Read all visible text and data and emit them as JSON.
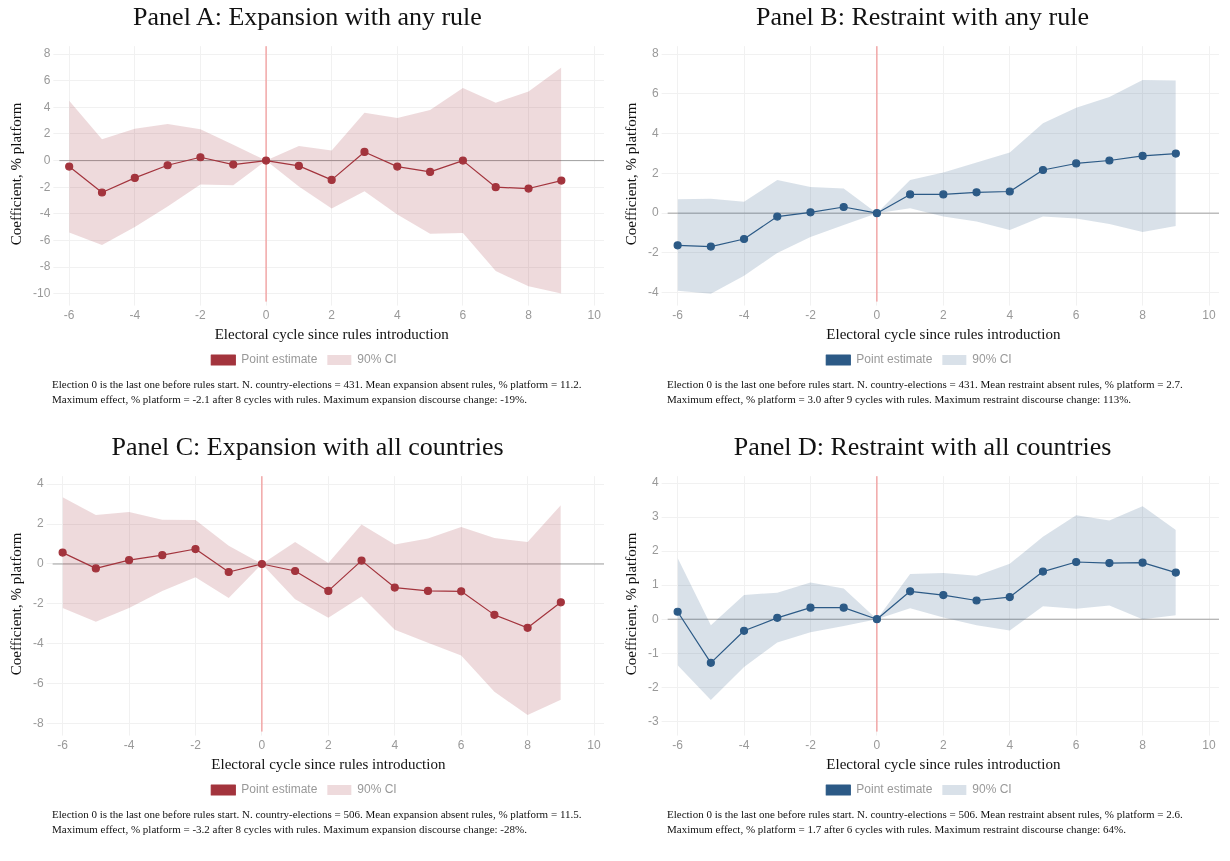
{
  "chart_data": [
    {
      "type": "line",
      "title": "Panel A: Expansion with any rule",
      "xlabel": "Electoral cycle since rules introduction",
      "ylabel": "Coefficient, % platform",
      "x": [
        -6,
        -5,
        -4,
        -3,
        -2,
        -1,
        0,
        1,
        2,
        3,
        4,
        5,
        6,
        7,
        8,
        9
      ],
      "series": [
        {
          "name": "Point estimate",
          "color": "#a3343d",
          "values": [
            -0.45,
            -2.4,
            -1.3,
            -0.35,
            0.25,
            -0.3,
            0,
            -0.4,
            -1.45,
            0.65,
            -0.45,
            -0.85,
            0,
            -2.0,
            -2.1,
            -1.5
          ],
          "lower": [
            -5.4,
            -6.35,
            -5.0,
            -3.45,
            -1.8,
            -1.85,
            0,
            -1.95,
            -3.6,
            -2.3,
            -4.05,
            -5.5,
            -5.45,
            -8.3,
            -9.45,
            -10.0
          ],
          "upper": [
            4.5,
            1.6,
            2.4,
            2.75,
            2.35,
            1.2,
            0,
            1.1,
            0.75,
            3.6,
            3.2,
            3.8,
            5.45,
            4.35,
            5.2,
            7.0
          ]
        }
      ],
      "xlim": [
        -6.3,
        10.3
      ],
      "xticks": [
        -6,
        -4,
        -2,
        0,
        2,
        4,
        6,
        8,
        10
      ],
      "ylim": [
        -10.6,
        8.6
      ],
      "yticks": [
        -10,
        -8,
        -6,
        -4,
        -2,
        0,
        2,
        4,
        6,
        8
      ],
      "ref_lines": [
        {
          "axis": "x",
          "value": 0,
          "color": "#f08080"
        },
        {
          "axis": "y",
          "value": 0,
          "color": "#a0a0a0"
        }
      ],
      "grid": true,
      "legend": "bottom",
      "marker": "circle",
      "line_style": "solid",
      "annotations": [
        "90% CI",
        "Election 0 is the last one before rules start. N. country-elections = 431. Mean expansion absent rules, % platform = 11.2.",
        "Maximum effect, % platform = -2.1 after 8 cycles with rules. Maximum expansion discourse change: -19%."
      ]
    },
    {
      "type": "line",
      "title": "Panel B: Restraint with any rule",
      "xlabel": "Electoral cycle since rules introduction",
      "ylabel": "Coefficient, % platform",
      "x": [
        -6,
        -5,
        -4,
        -3,
        -2,
        -1,
        0,
        1,
        2,
        3,
        4,
        5,
        6,
        7,
        8,
        9
      ],
      "series": [
        {
          "name": "Point estimate",
          "color": "#2c5a86",
          "values": [
            -1.62,
            -1.68,
            -1.3,
            -0.17,
            0.04,
            0.31,
            0,
            0.94,
            0.94,
            1.05,
            1.09,
            2.17,
            2.5,
            2.65,
            2.88,
            3.0
          ],
          "lower": [
            -3.9,
            -4.05,
            -3.15,
            -2.0,
            -1.2,
            -0.6,
            0,
            0.25,
            -0.17,
            -0.42,
            -0.85,
            -0.17,
            -0.27,
            -0.55,
            -0.95,
            -0.65
          ],
          "upper": [
            0.7,
            0.73,
            0.57,
            1.67,
            1.32,
            1.24,
            0,
            1.67,
            2.05,
            2.55,
            3.05,
            4.52,
            5.3,
            5.85,
            6.7,
            6.67
          ]
        }
      ],
      "xlim": [
        -6.3,
        10.3
      ],
      "xticks": [
        -6,
        -4,
        -2,
        0,
        2,
        4,
        6,
        8,
        10
      ],
      "ylim": [
        -4.45,
        8.4
      ],
      "yticks": [
        -4,
        -2,
        0,
        2,
        4,
        6,
        8
      ],
      "ref_lines": [
        {
          "axis": "x",
          "value": 0,
          "color": "#f08080"
        },
        {
          "axis": "y",
          "value": 0,
          "color": "#a0a0a0"
        }
      ],
      "grid": true,
      "legend": "bottom",
      "marker": "circle",
      "line_style": "solid",
      "annotations": [
        "90% CI",
        "Election 0 is the last one before rules start. N. country-elections = 431. Mean restraint absent rules, % platform = 2.7.",
        "Maximum effect, % platform = 3.0 after 9 cycles with rules. Maximum restraint discourse change: 113%."
      ]
    },
    {
      "type": "line",
      "title": "Panel C: Expansion with all countries",
      "xlabel": "Electoral cycle since rules introduction",
      "ylabel": "Coefficient, % platform",
      "x": [
        -6,
        -5,
        -4,
        -3,
        -2,
        -1,
        0,
        1,
        2,
        3,
        4,
        5,
        6,
        7,
        8,
        9
      ],
      "series": [
        {
          "name": "Point estimate",
          "color": "#a3343d",
          "values": [
            0.57,
            -0.22,
            0.19,
            0.44,
            0.75,
            -0.4,
            0,
            -0.35,
            -1.35,
            0.17,
            -1.18,
            -1.35,
            -1.37,
            -2.55,
            -3.2,
            -1.92
          ],
          "lower": [
            -2.2,
            -2.9,
            -2.2,
            -1.35,
            -0.67,
            -1.7,
            0,
            -1.77,
            -2.7,
            -1.63,
            -3.3,
            -3.95,
            -4.58,
            -6.4,
            -7.57,
            -6.8
          ],
          "upper": [
            3.35,
            2.45,
            2.6,
            2.22,
            2.2,
            0.92,
            0,
            1.1,
            0.05,
            1.98,
            0.98,
            1.28,
            1.85,
            1.3,
            1.1,
            2.95
          ]
        }
      ],
      "xlim": [
        -6.3,
        10.3
      ],
      "xticks": [
        -6,
        -4,
        -2,
        0,
        2,
        4,
        6,
        8,
        10
      ],
      "ylim": [
        -8.4,
        4.4
      ],
      "yticks": [
        -8,
        -6,
        -4,
        -2,
        0,
        2,
        4
      ],
      "ref_lines": [
        {
          "axis": "x",
          "value": 0,
          "color": "#f08080"
        },
        {
          "axis": "y",
          "value": 0,
          "color": "#a0a0a0"
        }
      ],
      "grid": true,
      "legend": "bottom",
      "marker": "circle",
      "line_style": "solid",
      "annotations": [
        "90% CI",
        "Election 0 is the last one before rules start. N. country-elections = 506. Mean expansion absent rules, % platform = 11.5.",
        "Maximum effect, % platform = -3.2 after 8 cycles with rules. Maximum expansion discourse change: -28%."
      ]
    },
    {
      "type": "line",
      "title": "Panel D: Restraint with all countries",
      "xlabel": "Electoral cycle since rules introduction",
      "ylabel": "Coefficient, % platform",
      "x": [
        -6,
        -5,
        -4,
        -3,
        -2,
        -1,
        0,
        1,
        2,
        3,
        4,
        5,
        6,
        7,
        8,
        9
      ],
      "series": [
        {
          "name": "Point estimate",
          "color": "#2c5a86",
          "values": [
            0.22,
            -1.28,
            -0.34,
            0.04,
            0.34,
            0.34,
            0,
            0.82,
            0.71,
            0.55,
            0.65,
            1.4,
            1.68,
            1.65,
            1.66,
            1.37
          ],
          "lower": [
            -1.35,
            -2.37,
            -1.4,
            -0.68,
            -0.38,
            -0.2,
            0,
            0.32,
            0.05,
            -0.18,
            -0.33,
            0.38,
            0.31,
            0.4,
            0.0,
            0.12
          ],
          "upper": [
            1.8,
            -0.18,
            0.71,
            0.78,
            1.08,
            0.9,
            0,
            1.33,
            1.36,
            1.28,
            1.63,
            2.42,
            3.05,
            2.9,
            3.32,
            2.62
          ]
        }
      ],
      "xlim": [
        -6.3,
        10.3
      ],
      "xticks": [
        -6,
        -4,
        -2,
        0,
        2,
        4,
        6,
        8,
        10
      ],
      "ylim": [
        -3.3,
        4.2
      ],
      "yticks": [
        -3,
        -2,
        -1,
        0,
        1,
        2,
        3,
        4
      ],
      "ref_lines": [
        {
          "axis": "x",
          "value": 0,
          "color": "#f08080"
        },
        {
          "axis": "y",
          "value": 0,
          "color": "#a0a0a0"
        }
      ],
      "grid": true,
      "legend": "bottom",
      "marker": "circle",
      "line_style": "solid",
      "annotations": [
        "90% CI",
        "Election 0 is the last one before rules start. N. country-elections = 506. Mean restraint absent rules, % platform = 2.6.",
        "Maximum effect, % platform = 1.7 after 6 cycles with rules. Maximum restraint discourse change: 64%."
      ]
    }
  ]
}
